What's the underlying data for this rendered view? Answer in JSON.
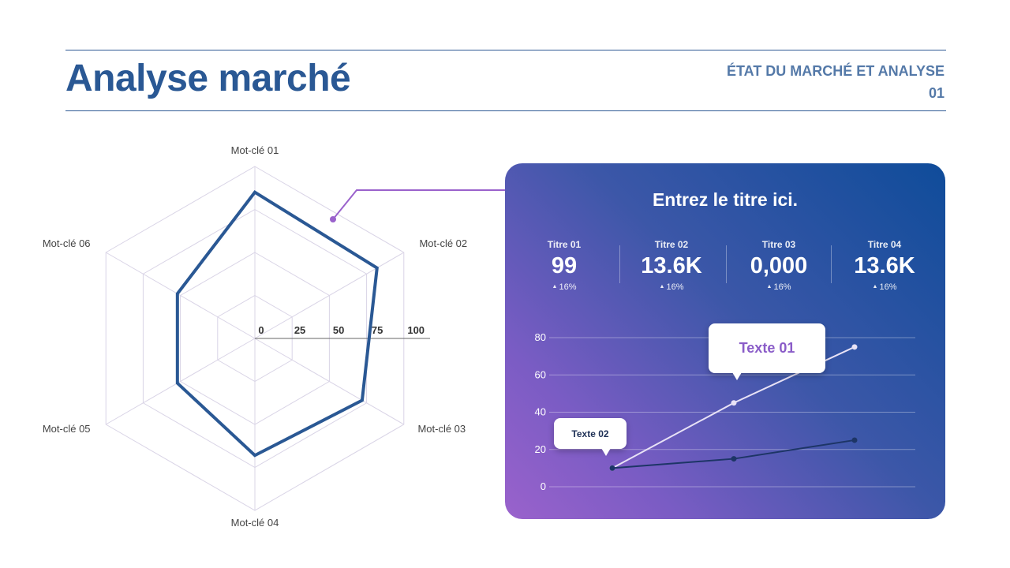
{
  "header": {
    "title": "Analyse marché",
    "section_line1": "ÉTAT DU MARCHÉ ET ANALYSE",
    "section_line2": "01"
  },
  "panel": {
    "title": "Entrez le titre ici.",
    "stats": [
      {
        "label": "Titre 01",
        "value": "99",
        "delta": "16%"
      },
      {
        "label": "Titre 02",
        "value": "13.6K",
        "delta": "16%"
      },
      {
        "label": "Titre 03",
        "value": "0,000",
        "delta": "16%"
      },
      {
        "label": "Titre 04",
        "value": "13.6K",
        "delta": "16%"
      }
    ],
    "callouts": {
      "text1": "Texte 01",
      "text2": "Texte 02"
    }
  },
  "colors": {
    "title": "#2a5894",
    "radar_series": "#2a5894",
    "accent_purple": "#9a62cc",
    "panel_blue": "#0f4c9a"
  },
  "chart_data": [
    {
      "type": "radar",
      "axes": [
        "Mot-clé 01",
        "Mot-clé 02",
        "Mot-clé 03",
        "Mot-clé 04",
        "Mot-clé 05",
        "Mot-clé 06"
      ],
      "ticks": [
        0,
        25,
        50,
        75,
        100
      ],
      "range": [
        0,
        100
      ],
      "series": [
        {
          "values": [
            85,
            82,
            72,
            68,
            52,
            52
          ]
        }
      ]
    },
    {
      "type": "line",
      "ylim": [
        0,
        80
      ],
      "yticks": [
        0,
        20,
        40,
        60,
        80
      ],
      "grid": true,
      "x": [
        1,
        2,
        3
      ],
      "series": [
        {
          "values": [
            10,
            45,
            75
          ],
          "color": "#e8e2f6"
        },
        {
          "values": [
            10,
            15,
            25
          ],
          "color": "#1d3566"
        }
      ]
    }
  ]
}
